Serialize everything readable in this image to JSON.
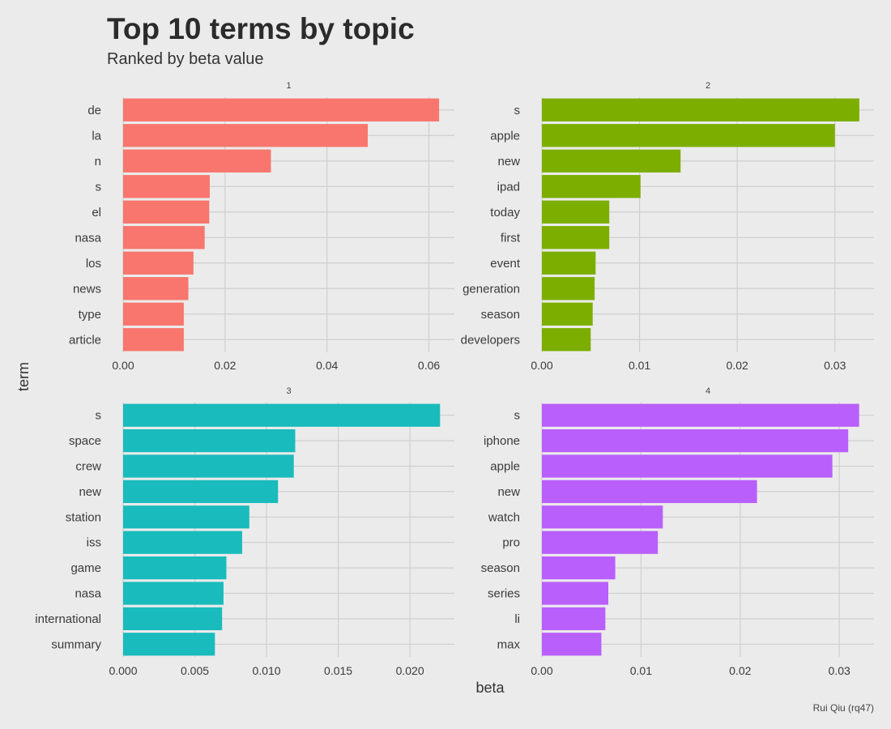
{
  "title": "Top 10 terms by topic",
  "subtitle": "Ranked by beta value",
  "caption": "Rui Qiu (rq47)",
  "xlabel": "beta",
  "ylabel": "term",
  "chart_data": [
    {
      "type": "bar",
      "orientation": "horizontal",
      "facet": "1",
      "color": "#F8766D",
      "categories": [
        "de",
        "la",
        "n",
        "s",
        "el",
        "nasa",
        "los",
        "news",
        "type",
        "article"
      ],
      "values": [
        0.062,
        0.048,
        0.029,
        0.017,
        0.0169,
        0.016,
        0.0138,
        0.0128,
        0.0119,
        0.0119
      ],
      "xlim": [
        0,
        0.065
      ],
      "xticks": [
        0,
        0.02,
        0.04,
        0.06
      ],
      "xtick_labels": [
        "0.00",
        "0.02",
        "0.04",
        "0.06"
      ],
      "grid": true
    },
    {
      "type": "bar",
      "orientation": "horizontal",
      "facet": "2",
      "color": "#7CAE00",
      "categories": [
        "s",
        "apple",
        "new",
        "ipad",
        "today",
        "first",
        "event",
        "generation",
        "season",
        "developers"
      ],
      "values": [
        0.0325,
        0.03,
        0.0142,
        0.0101,
        0.0069,
        0.0069,
        0.0055,
        0.0054,
        0.0052,
        0.005
      ],
      "xlim": [
        0,
        0.034
      ],
      "xticks": [
        0,
        0.01,
        0.02,
        0.03
      ],
      "xtick_labels": [
        "0.00",
        "0.01",
        "0.02",
        "0.03"
      ],
      "grid": true
    },
    {
      "type": "bar",
      "orientation": "horizontal",
      "facet": "3",
      "color": "#1ABBBC",
      "categories": [
        "s",
        "space",
        "crew",
        "new",
        "station",
        "iss",
        "game",
        "nasa",
        "international",
        "summary"
      ],
      "values": [
        0.0221,
        0.012,
        0.0119,
        0.0108,
        0.0088,
        0.0083,
        0.0072,
        0.007,
        0.0069,
        0.0064
      ],
      "xlim": [
        0,
        0.0231
      ],
      "xticks": [
        0,
        0.005,
        0.01,
        0.015,
        0.02
      ],
      "xtick_labels": [
        "0.000",
        "0.005",
        "0.010",
        "0.015",
        "0.020"
      ],
      "grid": true
    },
    {
      "type": "bar",
      "orientation": "horizontal",
      "facet": "4",
      "color": "#B95FFB",
      "categories": [
        "s",
        "iphone",
        "apple",
        "new",
        "watch",
        "pro",
        "season",
        "series",
        "li",
        "max"
      ],
      "values": [
        0.032,
        0.0309,
        0.0293,
        0.0217,
        0.0122,
        0.0117,
        0.0074,
        0.0067,
        0.0064,
        0.006
      ],
      "xlim": [
        0,
        0.0335
      ],
      "xticks": [
        0,
        0.01,
        0.02,
        0.03
      ],
      "xtick_labels": [
        "0.00",
        "0.01",
        "0.02",
        "0.03"
      ],
      "grid": true
    }
  ]
}
